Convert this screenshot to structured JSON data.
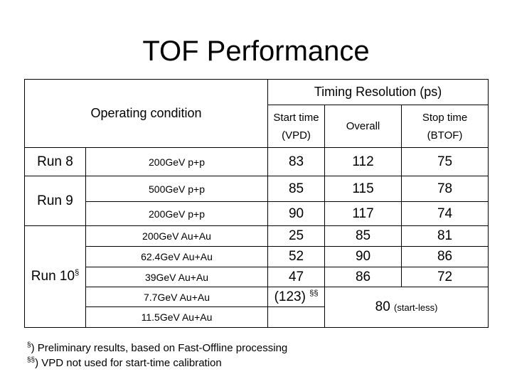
{
  "title": "TOF Performance",
  "header": {
    "operating_condition": "Operating condition",
    "timing_resolution": "Timing Resolution (ps)",
    "start_time": "Start time",
    "start_time_sub": "(VPD)",
    "overall": "Overall",
    "stop_time": "Stop time",
    "stop_time_sub": "(BTOF)"
  },
  "runs": {
    "run8": "Run 8",
    "run9": "Run 9",
    "run10": "Run 10",
    "run10_mark": "§"
  },
  "rows": [
    {
      "condition": "200GeV p+p",
      "start": "83",
      "overall": "112",
      "stop": "75"
    },
    {
      "condition": "500GeV p+p",
      "start": "85",
      "overall": "115",
      "stop": "78"
    },
    {
      "condition": "200GeV p+p",
      "start": "90",
      "overall": "117",
      "stop": "74"
    },
    {
      "condition": "200GeV Au+Au",
      "start": "25",
      "overall": "85",
      "stop": "81"
    },
    {
      "condition": "62.4GeV Au+Au",
      "start": "52",
      "overall": "90",
      "stop": "86"
    },
    {
      "condition": "39GeV Au+Au",
      "start": "47",
      "overall": "86",
      "stop": "72"
    },
    {
      "condition": "7.7GeV Au+Au",
      "start": "(123)",
      "start_mark": "§§"
    },
    {
      "condition": "11.5GeV Au+Au",
      "start": ""
    }
  ],
  "startless": {
    "value": "80",
    "note": "(start-less)"
  },
  "footnotes": [
    {
      "mark": "§",
      "text": ") Preliminary results, based on Fast-Offline processing"
    },
    {
      "mark": "§§",
      "text": ") VPD not used for start-time calibration"
    }
  ]
}
